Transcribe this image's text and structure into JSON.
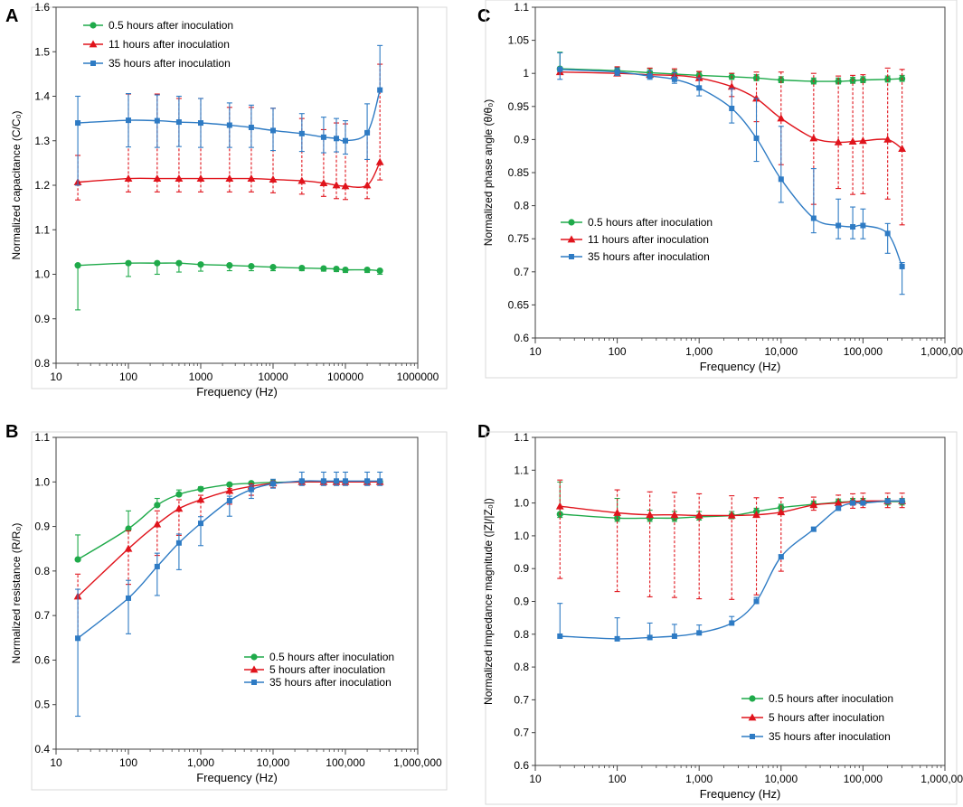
{
  "colors": {
    "green": "#1faa4a",
    "red": "#e0141c",
    "blue": "#2e7bc4",
    "axis": "#404040"
  },
  "chart_data": [
    {
      "panel": "A",
      "type": "line",
      "xscale": "log",
      "xlabel": "Frequency (Hz)",
      "ylabel": "Normalized capacitance (C/C₀)",
      "xlim": [
        10,
        1000000
      ],
      "ylim": [
        0.8,
        1.6
      ],
      "xticks": [
        10,
        100,
        1000,
        10000,
        100000,
        1000000
      ],
      "xtick_labels": [
        "10",
        "100",
        "1000",
        "10000",
        "100000",
        "1000000"
      ],
      "yticks": [
        0.8,
        0.9,
        1.0,
        1.1,
        1.2,
        1.3,
        1.4,
        1.5,
        1.6
      ],
      "ytick_labels": [
        "0.8",
        "0.9",
        "1.0",
        "1.1",
        "1.2",
        "1.3",
        "1.4",
        "1.5",
        "1.6"
      ],
      "legend_position": "top-left",
      "x": [
        20,
        100,
        250,
        500,
        1000,
        2500,
        5000,
        10000,
        25000,
        50000,
        75000,
        100000,
        200000,
        300000
      ],
      "series": [
        {
          "name": "0.5 hours after inoculation",
          "color": "green",
          "marker": "circle",
          "values": [
            1.02,
            1.025,
            1.025,
            1.025,
            1.022,
            1.02,
            1.018,
            1.016,
            1.014,
            1.013,
            1.012,
            1.01,
            1.01,
            1.008
          ],
          "err_lo": [
            0.1,
            0.03,
            0.025,
            0.02,
            0.015,
            0.012,
            0.01,
            0.008,
            0.006,
            0.006,
            0.006,
            0.006,
            0.006,
            0.008
          ],
          "err_hi": [
            0.0,
            0.0,
            0.0,
            0.0,
            0.0,
            0.0,
            0.0,
            0.0,
            0.0,
            0.0,
            0.0,
            0.0,
            0.0,
            0.0
          ]
        },
        {
          "name": "11 hours after inoculation",
          "color": "red",
          "marker": "triangle",
          "values": [
            1.207,
            1.215,
            1.215,
            1.215,
            1.215,
            1.215,
            1.215,
            1.213,
            1.21,
            1.205,
            1.2,
            1.198,
            1.2,
            1.252
          ],
          "err_lo": [
            0.04,
            0.03,
            0.03,
            0.03,
            0.03,
            0.03,
            0.03,
            0.03,
            0.03,
            0.03,
            0.03,
            0.03,
            0.03,
            0.04
          ],
          "err_hi": [
            0.06,
            0.19,
            0.19,
            0.18,
            0.18,
            0.16,
            0.16,
            0.16,
            0.14,
            0.12,
            0.14,
            0.14,
            0.12,
            0.22
          ],
          "dashed_errorbars": true
        },
        {
          "name": "35 hours after inoculation",
          "color": "blue",
          "marker": "square",
          "values": [
            1.34,
            1.346,
            1.345,
            1.342,
            1.34,
            1.335,
            1.33,
            1.323,
            1.316,
            1.308,
            1.305,
            1.3,
            1.318,
            1.414
          ],
          "err_lo": [
            0.14,
            0.06,
            0.06,
            0.055,
            0.055,
            0.05,
            0.045,
            0.045,
            0.04,
            0.035,
            0.03,
            0.03,
            0.06,
            0.0
          ],
          "err_hi": [
            0.06,
            0.06,
            0.058,
            0.058,
            0.055,
            0.05,
            0.05,
            0.05,
            0.045,
            0.045,
            0.045,
            0.045,
            0.065,
            0.1
          ]
        }
      ]
    },
    {
      "panel": "B",
      "type": "line",
      "xscale": "log",
      "xlabel": "Frequency (Hz)",
      "ylabel": "Normalized resistance (R/R₀)",
      "xlim": [
        10,
        1000000
      ],
      "ylim": [
        0.4,
        1.1
      ],
      "xticks": [
        10,
        100,
        1000,
        10000,
        100000,
        1000000
      ],
      "xtick_labels": [
        "10",
        "100",
        "1,000",
        "10,000",
        "100,000",
        "1,000,000"
      ],
      "yticks": [
        0.4,
        0.5,
        0.6,
        0.7,
        0.8,
        0.9,
        1.0,
        1.1
      ],
      "ytick_labels": [
        "0.4",
        "0.5",
        "0.6",
        "0.7",
        "0.8",
        "0.9",
        "1.0",
        "1.1"
      ],
      "legend_position": "bottom-right",
      "x": [
        20,
        100,
        250,
        500,
        1000,
        2500,
        5000,
        10000,
        25000,
        50000,
        75000,
        100000,
        200000,
        300000
      ],
      "series": [
        {
          "name": "0.5 hours after inoculation",
          "color": "green",
          "marker": "circle",
          "values": [
            0.826,
            0.895,
            0.948,
            0.972,
            0.984,
            0.994,
            0.997,
            0.999,
            1.0,
            1.0,
            1.0,
            1.0,
            1.0,
            1.0
          ],
          "err_lo": [
            0.0,
            0.0,
            0.0,
            0.0,
            0.0,
            0.0,
            0.0,
            0.0,
            0.0,
            0.0,
            0.0,
            0.0,
            0.0,
            0.0
          ],
          "err_hi": [
            0.055,
            0.04,
            0.015,
            0.01,
            0.005,
            0.003,
            0.003,
            0.003,
            0.003,
            0.003,
            0.003,
            0.003,
            0.003,
            0.003
          ]
        },
        {
          "name": "5 hours after inoculation",
          "color": "red",
          "marker": "triangle",
          "values": [
            0.743,
            0.85,
            0.905,
            0.94,
            0.96,
            0.98,
            0.99,
            0.997,
            1.0,
            1.0,
            1.0,
            1.0,
            1.0,
            1.0
          ],
          "err_lo": [
            0.09,
            0.08,
            0.07,
            0.06,
            0.05,
            0.03,
            0.02,
            0.01,
            0.005,
            0.005,
            0.005,
            0.005,
            0.005,
            0.005
          ],
          "err_hi": [
            0.05,
            0.04,
            0.03,
            0.02,
            0.01,
            0.005,
            0.005,
            0.005,
            0.005,
            0.005,
            0.005,
            0.005,
            0.005,
            0.005
          ],
          "dashed_errorbars": true
        },
        {
          "name": "35 hours after inoculation",
          "color": "blue",
          "marker": "square",
          "values": [
            0.649,
            0.739,
            0.81,
            0.863,
            0.907,
            0.958,
            0.983,
            0.996,
            1.002,
            1.002,
            1.002,
            1.002,
            1.002,
            1.002
          ],
          "err_lo": [
            0.175,
            0.08,
            0.065,
            0.06,
            0.05,
            0.035,
            0.02,
            0.01,
            0.01,
            0.01,
            0.01,
            0.01,
            0.01,
            0.01
          ],
          "err_hi": [
            0.11,
            0.04,
            0.03,
            0.02,
            0.015,
            0.01,
            0.01,
            0.01,
            0.02,
            0.02,
            0.02,
            0.02,
            0.02,
            0.02
          ]
        }
      ]
    },
    {
      "panel": "C",
      "type": "line",
      "xscale": "log",
      "xlabel": "Frequency (Hz)",
      "ylabel": "Normalized phase angle (θ/θ₀)",
      "xlim": [
        10,
        1000000
      ],
      "ylim": [
        0.6,
        1.1
      ],
      "xticks": [
        10,
        100,
        1000,
        10000,
        100000,
        1000000
      ],
      "xtick_labels": [
        "10",
        "100",
        "1,000",
        "10,000",
        "100,000",
        "1,000,000"
      ],
      "yticks": [
        0.6,
        0.65,
        0.7,
        0.75,
        0.8,
        0.85,
        0.9,
        0.95,
        1.0,
        1.05,
        1.1
      ],
      "ytick_labels": [
        "0.6",
        "0.65",
        "0.7",
        "0.75",
        "0.8",
        "0.85",
        "0.9",
        "0.95",
        "1",
        "1.05",
        "1.1"
      ],
      "legend_position": "center-left",
      "x": [
        20,
        100,
        250,
        500,
        1000,
        2500,
        5000,
        10000,
        25000,
        50000,
        75000,
        100000,
        200000,
        300000
      ],
      "series": [
        {
          "name": "0.5 hours after inoculation",
          "color": "green",
          "marker": "circle",
          "values": [
            1.007,
            1.004,
            1.001,
            0.999,
            0.997,
            0.995,
            0.993,
            0.99,
            0.988,
            0.988,
            0.989,
            0.99,
            0.991,
            0.992
          ],
          "err_lo": [
            0.003,
            0.003,
            0.004,
            0.004,
            0.004,
            0.004,
            0.004,
            0.004,
            0.004,
            0.004,
            0.004,
            0.004,
            0.004,
            0.004
          ],
          "err_hi": [
            0.025,
            0.005,
            0.006,
            0.006,
            0.005,
            0.005,
            0.005,
            0.005,
            0.005,
            0.005,
            0.005,
            0.005,
            0.005,
            0.005
          ]
        },
        {
          "name": "11 hours after inoculation",
          "color": "red",
          "marker": "triangle",
          "values": [
            1.002,
            1.0,
            0.998,
            0.997,
            0.993,
            0.98,
            0.962,
            0.932,
            0.902,
            0.896,
            0.897,
            0.898,
            0.9,
            0.886
          ],
          "err_lo": [
            0.0,
            0.0,
            0.0,
            0.0,
            0.0,
            0.015,
            0.035,
            0.07,
            0.1,
            0.07,
            0.08,
            0.08,
            0.09,
            0.115
          ],
          "err_hi": [
            0.0,
            0.01,
            0.01,
            0.01,
            0.01,
            0.02,
            0.04,
            0.07,
            0.098,
            0.1,
            0.1,
            0.1,
            0.108,
            0.12
          ],
          "dashed_errorbars": true
        },
        {
          "name": "35 hours after inoculation",
          "color": "blue",
          "marker": "square",
          "values": [
            1.006,
            1.002,
            0.996,
            0.991,
            0.978,
            0.947,
            0.902,
            0.84,
            0.781,
            0.77,
            0.768,
            0.77,
            0.758,
            0.708
          ],
          "err_lo": [
            0.015,
            0.005,
            0.005,
            0.006,
            0.012,
            0.022,
            0.035,
            0.035,
            0.022,
            0.02,
            0.018,
            0.02,
            0.03,
            0.042
          ],
          "err_hi": [
            0.025,
            0.006,
            0.008,
            0.01,
            0.015,
            0.03,
            0.06,
            0.08,
            0.075,
            0.04,
            0.03,
            0.025,
            0.015,
            0.006
          ]
        }
      ]
    },
    {
      "panel": "D",
      "type": "line",
      "xscale": "log",
      "xlabel": "Frequency (Hz)",
      "ylabel": "Normalized impedance magnitude (|Z|/|Z₀|)",
      "xlim": [
        10,
        1000000
      ],
      "ylim": [
        0.6,
        1.1
      ],
      "xticks": [
        10,
        100,
        1000,
        10000,
        100000,
        1000000
      ],
      "xtick_labels": [
        "10",
        "100",
        "1,000",
        "10,000",
        "100,000",
        "1,000,000"
      ],
      "yticks": [
        0.6,
        0.65,
        0.7,
        0.75,
        0.8,
        0.85,
        0.9,
        0.95,
        1.0,
        1.05,
        1.1
      ],
      "ytick_labels": [
        "0.6",
        "0.7",
        "0.7",
        "0.8",
        "0.8",
        "0.9",
        "0.9",
        "1.0",
        "1.0",
        "1.1",
        "1.1"
      ],
      "legend_position": "bottom-right",
      "x": [
        20,
        100,
        250,
        500,
        1000,
        2500,
        5000,
        10000,
        25000,
        50000,
        75000,
        100000,
        200000,
        300000
      ],
      "series": [
        {
          "name": "0.5 hours after inoculation",
          "color": "green",
          "marker": "circle",
          "values": [
            0.983,
            0.977,
            0.977,
            0.977,
            0.979,
            0.981,
            0.987,
            0.993,
            0.998,
            1.001,
            1.002,
            1.002,
            1.002,
            1.002
          ],
          "err_lo": [
            0.005,
            0.005,
            0.005,
            0.005,
            0.005,
            0.005,
            0.005,
            0.005,
            0.005,
            0.005,
            0.005,
            0.005,
            0.005,
            0.005
          ],
          "err_hi": [
            0.049,
            0.03,
            0.012,
            0.01,
            0.008,
            0.006,
            0.005,
            0.005,
            0.005,
            0.005,
            0.005,
            0.005,
            0.005,
            0.005
          ]
        },
        {
          "name": "5 hours after inoculation",
          "color": "red",
          "marker": "triangle",
          "values": [
            0.995,
            0.985,
            0.982,
            0.982,
            0.981,
            0.981,
            0.982,
            0.986,
            0.997,
            1.0,
            1.002,
            1.003,
            1.003,
            1.003
          ],
          "err_lo": [
            0.11,
            0.12,
            0.125,
            0.126,
            0.127,
            0.128,
            0.122,
            0.09,
            0.008,
            0.01,
            0.01,
            0.01,
            0.01,
            0.01
          ],
          "err_hi": [
            0.04,
            0.035,
            0.035,
            0.034,
            0.033,
            0.03,
            0.026,
            0.022,
            0.012,
            0.012,
            0.012,
            0.012,
            0.012,
            0.012
          ],
          "dashed_errorbars": true
        },
        {
          "name": "35 hours after inoculation",
          "color": "blue",
          "marker": "square",
          "values": [
            0.797,
            0.793,
            0.795,
            0.797,
            0.802,
            0.817,
            0.85,
            0.918,
            0.96,
            0.992,
            1.0,
            1.0,
            1.003,
            1.003
          ],
          "err_lo": [
            0.0,
            0.0,
            0.0,
            0.0,
            0.0,
            0.0,
            0.003,
            0.003,
            0.003,
            0.003,
            0.003,
            0.003,
            0.003,
            0.003
          ],
          "err_hi": [
            0.05,
            0.032,
            0.022,
            0.018,
            0.012,
            0.01,
            0.006,
            0.003,
            0.003,
            0.003,
            0.003,
            0.003,
            0.003,
            0.003
          ]
        }
      ]
    }
  ]
}
